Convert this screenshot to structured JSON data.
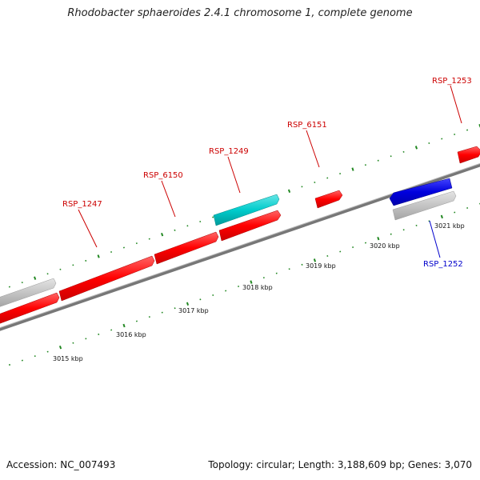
{
  "title": "Rhodobacter sphaeroides 2.4.1 chromosome 1, complete genome",
  "footer": {
    "accession": "Accession: NC_007493",
    "summary": "Topology: circular; Length: 3,188,609 bp; Genes: 3,070"
  },
  "ticks": {
    "unit": "kbp",
    "labels": [
      "3015 kbp",
      "3016 kbp",
      "3017 kbp",
      "3018 kbp",
      "3019 kbp",
      "3020 kbp",
      "3021 kbp"
    ]
  },
  "genes": [
    {
      "name": "RSP_1247",
      "strand": "+",
      "color": "#ff0000"
    },
    {
      "name": "RSP_6150",
      "strand": "+",
      "color": "#ff0000"
    },
    {
      "name": "RSP_1249",
      "strand": "+",
      "color": "#00cccc"
    },
    {
      "name": "RSP_6151",
      "strand": "+",
      "color": "#ff0000"
    },
    {
      "name": "RSP_1252",
      "strand": "-",
      "color": "#0000cc"
    },
    {
      "name": "RSP_1253",
      "strand": "+",
      "color": "#ff0000"
    }
  ],
  "colors": {
    "forward_gene": "#ff0000",
    "rna_gene": "#00cccc",
    "reverse_gene": "#0000cc",
    "other_feature": "#bbbbbb",
    "backbone": "#777777",
    "tick": "#228822",
    "forward_label": "#cc0000",
    "reverse_label": "#0000cc"
  }
}
